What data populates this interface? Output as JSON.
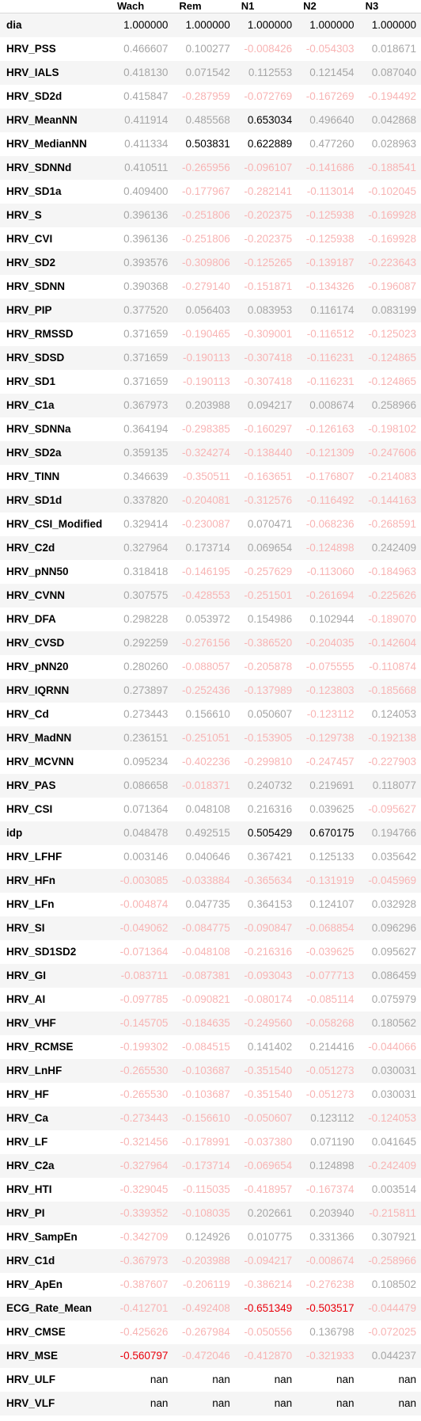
{
  "colors": {
    "strong_pos": "#000000",
    "weak_pos": "#a6a6a6",
    "strong_neg": "#e8000b",
    "weak_neg": "#f8b4b4",
    "nan": "#000000"
  },
  "threshold": 0.5,
  "table": {
    "columns": [
      "Wach",
      "Rem",
      "N1",
      "N2",
      "N3"
    ],
    "rows": [
      {
        "name": "dia",
        "values": [
          "1.000000",
          "1.000000",
          "1.000000",
          "1.000000",
          "1.000000"
        ]
      },
      {
        "name": "HRV_PSS",
        "values": [
          "0.466607",
          "0.100277",
          "-0.008426",
          "-0.054303",
          "0.018671"
        ]
      },
      {
        "name": "HRV_IALS",
        "values": [
          "0.418130",
          "0.071542",
          "0.112553",
          "0.121454",
          "0.087040"
        ]
      },
      {
        "name": "HRV_SD2d",
        "values": [
          "0.415847",
          "-0.287959",
          "-0.072769",
          "-0.167269",
          "-0.194492"
        ]
      },
      {
        "name": "HRV_MeanNN",
        "values": [
          "0.411914",
          "0.485568",
          "0.653034",
          "0.496640",
          "0.042868"
        ]
      },
      {
        "name": "HRV_MedianNN",
        "values": [
          "0.411334",
          "0.503831",
          "0.622889",
          "0.477260",
          "0.028963"
        ]
      },
      {
        "name": "HRV_SDNNd",
        "values": [
          "0.410511",
          "-0.265956",
          "-0.096107",
          "-0.141686",
          "-0.188541"
        ]
      },
      {
        "name": "HRV_SD1a",
        "values": [
          "0.409400",
          "-0.177967",
          "-0.282141",
          "-0.113014",
          "-0.102045"
        ]
      },
      {
        "name": "HRV_S",
        "values": [
          "0.396136",
          "-0.251806",
          "-0.202375",
          "-0.125938",
          "-0.169928"
        ]
      },
      {
        "name": "HRV_CVI",
        "values": [
          "0.396136",
          "-0.251806",
          "-0.202375",
          "-0.125938",
          "-0.169928"
        ]
      },
      {
        "name": "HRV_SD2",
        "values": [
          "0.393576",
          "-0.309806",
          "-0.125265",
          "-0.139187",
          "-0.223643"
        ]
      },
      {
        "name": "HRV_SDNN",
        "values": [
          "0.390368",
          "-0.279140",
          "-0.151871",
          "-0.134326",
          "-0.196087"
        ]
      },
      {
        "name": "HRV_PIP",
        "values": [
          "0.377520",
          "0.056403",
          "0.083953",
          "0.116174",
          "0.083199"
        ]
      },
      {
        "name": "HRV_RMSSD",
        "values": [
          "0.371659",
          "-0.190465",
          "-0.309001",
          "-0.116512",
          "-0.125023"
        ]
      },
      {
        "name": "HRV_SDSD",
        "values": [
          "0.371659",
          "-0.190113",
          "-0.307418",
          "-0.116231",
          "-0.124865"
        ]
      },
      {
        "name": "HRV_SD1",
        "values": [
          "0.371659",
          "-0.190113",
          "-0.307418",
          "-0.116231",
          "-0.124865"
        ]
      },
      {
        "name": "HRV_C1a",
        "values": [
          "0.367973",
          "0.203988",
          "0.094217",
          "0.008674",
          "0.258966"
        ]
      },
      {
        "name": "HRV_SDNNa",
        "values": [
          "0.364194",
          "-0.298385",
          "-0.160297",
          "-0.126163",
          "-0.198102"
        ]
      },
      {
        "name": "HRV_SD2a",
        "values": [
          "0.359135",
          "-0.324274",
          "-0.138440",
          "-0.121309",
          "-0.247606"
        ]
      },
      {
        "name": "HRV_TINN",
        "values": [
          "0.346639",
          "-0.350511",
          "-0.163651",
          "-0.176807",
          "-0.214083"
        ]
      },
      {
        "name": "HRV_SD1d",
        "values": [
          "0.337820",
          "-0.204081",
          "-0.312576",
          "-0.116492",
          "-0.144163"
        ]
      },
      {
        "name": "HRV_CSI_Modified",
        "values": [
          "0.329414",
          "-0.230087",
          "0.070471",
          "-0.068236",
          "-0.268591"
        ]
      },
      {
        "name": "HRV_C2d",
        "values": [
          "0.327964",
          "0.173714",
          "0.069654",
          "-0.124898",
          "0.242409"
        ]
      },
      {
        "name": "HRV_pNN50",
        "values": [
          "0.318418",
          "-0.146195",
          "-0.257629",
          "-0.113060",
          "-0.184963"
        ]
      },
      {
        "name": "HRV_CVNN",
        "values": [
          "0.307575",
          "-0.428553",
          "-0.251501",
          "-0.261694",
          "-0.225626"
        ]
      },
      {
        "name": "HRV_DFA",
        "values": [
          "0.298228",
          "0.053972",
          "0.154986",
          "0.102944",
          "-0.189070"
        ]
      },
      {
        "name": "HRV_CVSD",
        "values": [
          "0.292259",
          "-0.276156",
          "-0.386520",
          "-0.204035",
          "-0.142604"
        ]
      },
      {
        "name": "HRV_pNN20",
        "values": [
          "0.280260",
          "-0.088057",
          "-0.205878",
          "-0.075555",
          "-0.110874"
        ]
      },
      {
        "name": "HRV_IQRNN",
        "values": [
          "0.273897",
          "-0.252436",
          "-0.137989",
          "-0.123803",
          "-0.185668"
        ]
      },
      {
        "name": "HRV_Cd",
        "values": [
          "0.273443",
          "0.156610",
          "0.050607",
          "-0.123112",
          "0.124053"
        ]
      },
      {
        "name": "HRV_MadNN",
        "values": [
          "0.236151",
          "-0.251051",
          "-0.153905",
          "-0.129738",
          "-0.192138"
        ]
      },
      {
        "name": "HRV_MCVNN",
        "values": [
          "0.095234",
          "-0.402236",
          "-0.299810",
          "-0.247457",
          "-0.227903"
        ]
      },
      {
        "name": "HRV_PAS",
        "values": [
          "0.086658",
          "-0.018371",
          "0.240732",
          "0.219691",
          "0.118077"
        ]
      },
      {
        "name": "HRV_CSI",
        "values": [
          "0.071364",
          "0.048108",
          "0.216316",
          "0.039625",
          "-0.095627"
        ]
      },
      {
        "name": "idp",
        "values": [
          "0.048478",
          "0.492515",
          "0.505429",
          "0.670175",
          "0.194766"
        ]
      },
      {
        "name": "HRV_LFHF",
        "values": [
          "0.003146",
          "0.040646",
          "0.367421",
          "0.125133",
          "0.035642"
        ]
      },
      {
        "name": "HRV_HFn",
        "values": [
          "-0.003085",
          "-0.033884",
          "-0.365634",
          "-0.131919",
          "-0.045969"
        ]
      },
      {
        "name": "HRV_LFn",
        "values": [
          "-0.004874",
          "0.047735",
          "0.364153",
          "0.124107",
          "0.032928"
        ]
      },
      {
        "name": "HRV_SI",
        "values": [
          "-0.049062",
          "-0.084775",
          "-0.090847",
          "-0.068854",
          "0.096296"
        ]
      },
      {
        "name": "HRV_SD1SD2",
        "values": [
          "-0.071364",
          "-0.048108",
          "-0.216316",
          "-0.039625",
          "0.095627"
        ]
      },
      {
        "name": "HRV_GI",
        "values": [
          "-0.083711",
          "-0.087381",
          "-0.093043",
          "-0.077713",
          "0.086459"
        ]
      },
      {
        "name": "HRV_AI",
        "values": [
          "-0.097785",
          "-0.090821",
          "-0.080174",
          "-0.085114",
          "0.075979"
        ]
      },
      {
        "name": "HRV_VHF",
        "values": [
          "-0.145705",
          "-0.184635",
          "-0.249560",
          "-0.058268",
          "0.180562"
        ]
      },
      {
        "name": "HRV_RCMSE",
        "values": [
          "-0.199302",
          "-0.084515",
          "0.141402",
          "0.214416",
          "-0.044066"
        ]
      },
      {
        "name": "HRV_LnHF",
        "values": [
          "-0.265530",
          "-0.103687",
          "-0.351540",
          "-0.051273",
          "0.030031"
        ]
      },
      {
        "name": "HRV_HF",
        "values": [
          "-0.265530",
          "-0.103687",
          "-0.351540",
          "-0.051273",
          "0.030031"
        ]
      },
      {
        "name": "HRV_Ca",
        "values": [
          "-0.273443",
          "-0.156610",
          "-0.050607",
          "0.123112",
          "-0.124053"
        ]
      },
      {
        "name": "HRV_LF",
        "values": [
          "-0.321456",
          "-0.178991",
          "-0.037380",
          "0.071190",
          "0.041645"
        ]
      },
      {
        "name": "HRV_C2a",
        "values": [
          "-0.327964",
          "-0.173714",
          "-0.069654",
          "0.124898",
          "-0.242409"
        ]
      },
      {
        "name": "HRV_HTI",
        "values": [
          "-0.329045",
          "-0.115035",
          "-0.418957",
          "-0.167374",
          "0.003514"
        ]
      },
      {
        "name": "HRV_PI",
        "values": [
          "-0.339352",
          "-0.108035",
          "0.202661",
          "0.203940",
          "-0.215811"
        ]
      },
      {
        "name": "HRV_SampEn",
        "values": [
          "-0.342709",
          "0.124926",
          "0.010775",
          "0.331366",
          "0.307921"
        ]
      },
      {
        "name": "HRV_C1d",
        "values": [
          "-0.367973",
          "-0.203988",
          "-0.094217",
          "-0.008674",
          "-0.258966"
        ]
      },
      {
        "name": "HRV_ApEn",
        "values": [
          "-0.387607",
          "-0.206119",
          "-0.386214",
          "-0.276238",
          "0.108502"
        ]
      },
      {
        "name": "ECG_Rate_Mean",
        "values": [
          "-0.412701",
          "-0.492408",
          "-0.651349",
          "-0.503517",
          "-0.044479"
        ]
      },
      {
        "name": "HRV_CMSE",
        "values": [
          "-0.425626",
          "-0.267984",
          "-0.050556",
          "0.136798",
          "-0.072025"
        ]
      },
      {
        "name": "HRV_MSE",
        "values": [
          "-0.560797",
          "-0.472046",
          "-0.412870",
          "-0.321933",
          "0.044237"
        ]
      },
      {
        "name": "HRV_ULF",
        "values": [
          "nan",
          "nan",
          "nan",
          "nan",
          "nan"
        ]
      },
      {
        "name": "HRV_VLF",
        "values": [
          "nan",
          "nan",
          "nan",
          "nan",
          "nan"
        ]
      }
    ]
  }
}
